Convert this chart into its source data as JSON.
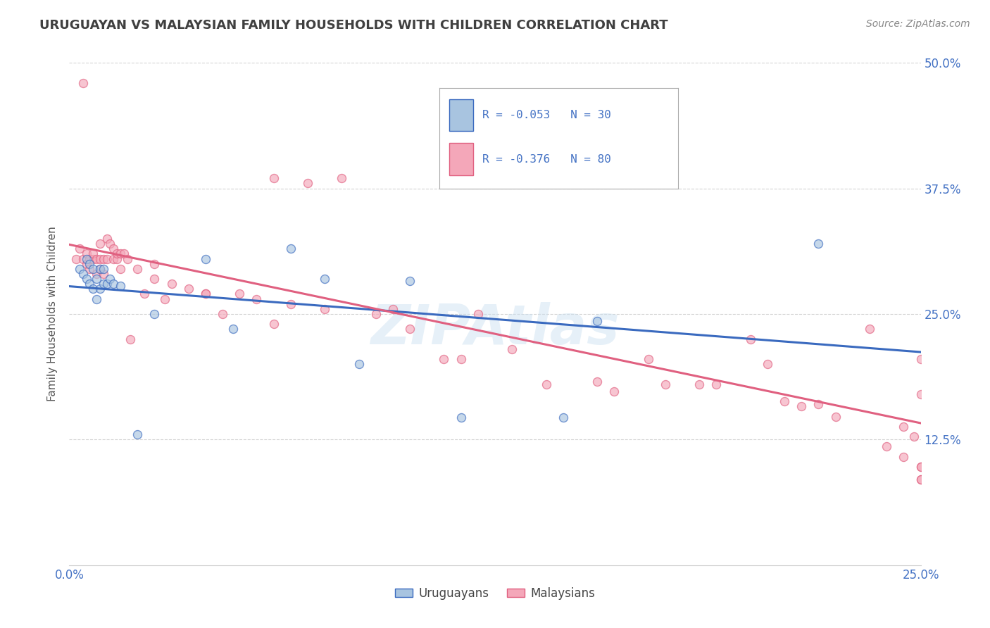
{
  "title": "URUGUAYAN VS MALAYSIAN FAMILY HOUSEHOLDS WITH CHILDREN CORRELATION CHART",
  "source": "Source: ZipAtlas.com",
  "ylabel": "Family Households with Children",
  "xmin": 0.0,
  "xmax": 0.25,
  "ymin": 0.0,
  "ymax": 0.5,
  "xticks": [
    0.0,
    0.025,
    0.05,
    0.075,
    0.1,
    0.125,
    0.15,
    0.175,
    0.2,
    0.225,
    0.25
  ],
  "yticks": [
    0.125,
    0.25,
    0.375,
    0.5
  ],
  "ytick_labels_right": [
    "12.5%",
    "25.0%",
    "37.5%",
    "50.0%"
  ],
  "xtick_labels": [
    "0.0%",
    "",
    "",
    "",
    "",
    "",
    "",
    "",
    "",
    "",
    "25.0%"
  ],
  "uruguayan_color": "#a8c4e0",
  "malaysian_color": "#f4a7b9",
  "uruguayan_line_color": "#3a6abf",
  "malaysian_line_color": "#e06080",
  "R_uruguayan": -0.053,
  "N_uruguayan": 30,
  "R_malaysian": -0.376,
  "N_malaysian": 80,
  "uruguayan_x": [
    0.003,
    0.004,
    0.005,
    0.005,
    0.006,
    0.006,
    0.007,
    0.007,
    0.008,
    0.008,
    0.009,
    0.009,
    0.01,
    0.01,
    0.011,
    0.012,
    0.013,
    0.015,
    0.02,
    0.025,
    0.04,
    0.048,
    0.065,
    0.075,
    0.085,
    0.1,
    0.115,
    0.145,
    0.155,
    0.22
  ],
  "uruguayan_y": [
    0.295,
    0.29,
    0.285,
    0.305,
    0.28,
    0.3,
    0.275,
    0.295,
    0.265,
    0.285,
    0.275,
    0.295,
    0.28,
    0.295,
    0.28,
    0.285,
    0.28,
    0.278,
    0.13,
    0.25,
    0.305,
    0.235,
    0.315,
    0.285,
    0.2,
    0.283,
    0.147,
    0.147,
    0.243,
    0.32
  ],
  "malaysian_x": [
    0.002,
    0.003,
    0.004,
    0.004,
    0.005,
    0.005,
    0.006,
    0.006,
    0.007,
    0.007,
    0.008,
    0.008,
    0.009,
    0.009,
    0.009,
    0.01,
    0.01,
    0.011,
    0.011,
    0.012,
    0.013,
    0.013,
    0.014,
    0.014,
    0.015,
    0.015,
    0.016,
    0.017,
    0.018,
    0.02,
    0.022,
    0.025,
    0.025,
    0.028,
    0.03,
    0.035,
    0.04,
    0.04,
    0.045,
    0.05,
    0.055,
    0.06,
    0.06,
    0.065,
    0.07,
    0.075,
    0.08,
    0.09,
    0.095,
    0.1,
    0.11,
    0.115,
    0.12,
    0.12,
    0.125,
    0.13,
    0.14,
    0.155,
    0.16,
    0.17,
    0.175,
    0.185,
    0.19,
    0.2,
    0.205,
    0.21,
    0.215,
    0.22,
    0.225,
    0.235,
    0.24,
    0.245,
    0.245,
    0.248,
    0.25,
    0.25,
    0.25,
    0.25,
    0.25,
    0.25
  ],
  "malaysian_y": [
    0.305,
    0.315,
    0.305,
    0.48,
    0.3,
    0.31,
    0.305,
    0.295,
    0.305,
    0.31,
    0.29,
    0.305,
    0.295,
    0.305,
    0.32,
    0.29,
    0.305,
    0.305,
    0.325,
    0.32,
    0.305,
    0.315,
    0.305,
    0.31,
    0.31,
    0.295,
    0.31,
    0.305,
    0.225,
    0.295,
    0.27,
    0.3,
    0.285,
    0.265,
    0.28,
    0.275,
    0.27,
    0.27,
    0.25,
    0.27,
    0.265,
    0.24,
    0.385,
    0.26,
    0.38,
    0.255,
    0.385,
    0.25,
    0.255,
    0.235,
    0.205,
    0.205,
    0.38,
    0.25,
    0.39,
    0.215,
    0.18,
    0.183,
    0.173,
    0.205,
    0.18,
    0.18,
    0.18,
    0.225,
    0.2,
    0.163,
    0.158,
    0.16,
    0.148,
    0.235,
    0.118,
    0.138,
    0.108,
    0.128,
    0.17,
    0.085,
    0.085,
    0.098,
    0.098,
    0.205
  ],
  "watermark": "ZIPAtlas",
  "background_color": "#ffffff",
  "grid_color": "#c8c8c8",
  "tick_label_color": "#4472c4",
  "title_color": "#404040",
  "marker_size": 75,
  "marker_alpha": 0.65,
  "figsize": [
    14.06,
    8.92
  ],
  "dpi": 100
}
